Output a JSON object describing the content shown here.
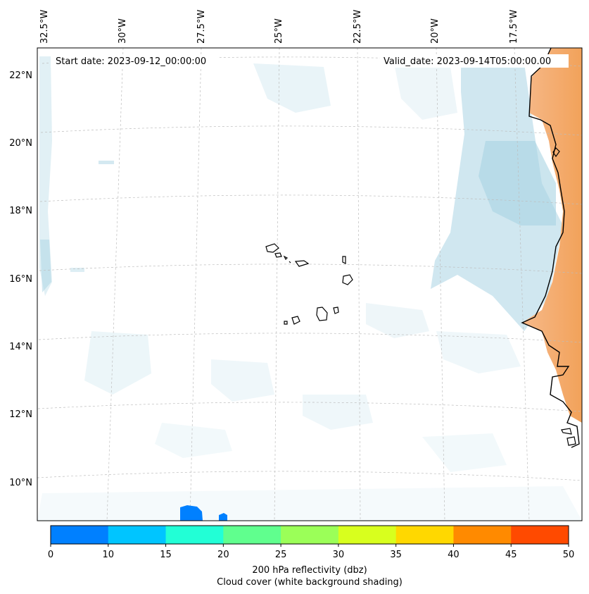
{
  "header": {
    "start_date": "Start date: 2023-09-12_00:00:00",
    "valid_date": "Valid_date: 2023-09-14T05:00:00.00"
  },
  "map": {
    "projection": "conic",
    "lon_labels": [
      "32.5°W",
      "30°W",
      "27.5°W",
      "25°W",
      "22.5°W",
      "20°W",
      "17.5°W"
    ],
    "lat_labels": [
      "22°N",
      "20°N",
      "18°N",
      "16°N",
      "14°N",
      "12°N",
      "10°N"
    ],
    "gridlines": "dashed light gray",
    "land_shading_color": "#f3a35c",
    "cloud_shading_color": "#a9d4e3",
    "features": [
      "Cabo Verde islands",
      "West African coastline",
      "small reflectivity blobs near bottom edge"
    ]
  },
  "colorbar": {
    "ticks": [
      "0",
      "10",
      "15",
      "20",
      "25",
      "30",
      "35",
      "40",
      "45",
      "50"
    ],
    "colors": [
      "#0080ff",
      "#00c5ff",
      "#22ffd6",
      "#60ff8e",
      "#9bff58",
      "#d8ff1e",
      "#ffd800",
      "#ff8a00",
      "#ff4a00"
    ],
    "label_line1": "200 hPa reflectivity (dbz)",
    "label_line2": "Cloud cover (white background shading)"
  }
}
